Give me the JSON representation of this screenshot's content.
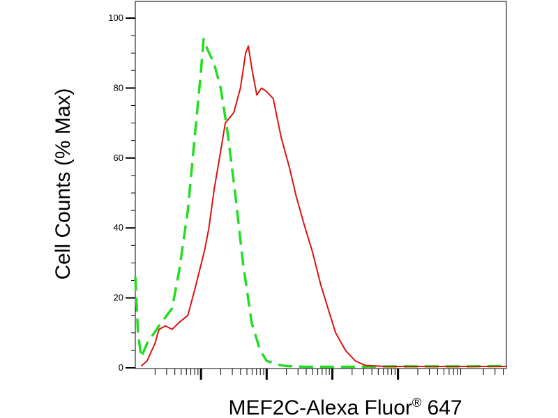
{
  "chart_data": {
    "type": "line",
    "subtype": "flow-cytometry-histogram",
    "title": "",
    "xlabel": "MEF2C-Alexa Fluor",
    "xlabel_superscript": "®",
    "xlabel_suffix": " 647",
    "ylabel": "Cell Counts (% Max)",
    "x_scale": "log",
    "x_range_decades": [
      0,
      5.65
    ],
    "x_major_decades": [
      1,
      2,
      3,
      4
    ],
    "ylim": [
      0,
      100
    ],
    "yticks": [
      0,
      20,
      40,
      60,
      80,
      100
    ],
    "ytick_labels": [
      "0",
      "20",
      "40",
      "60",
      "80",
      "100"
    ],
    "grid": false,
    "legend": "none",
    "series": [
      {
        "color": "#22dd22",
        "style": "dashed",
        "points": [
          [
            0.0,
            26
          ],
          [
            0.04,
            10
          ],
          [
            0.09,
            3
          ],
          [
            0.18,
            7
          ],
          [
            0.36,
            12
          ],
          [
            0.56,
            17
          ],
          [
            0.67,
            28
          ],
          [
            0.8,
            45
          ],
          [
            0.9,
            65
          ],
          [
            1.0,
            85
          ],
          [
            1.04,
            94
          ],
          [
            1.1,
            91
          ],
          [
            1.2,
            87
          ],
          [
            1.3,
            80
          ],
          [
            1.4,
            68
          ],
          [
            1.52,
            50
          ],
          [
            1.64,
            30
          ],
          [
            1.77,
            13
          ],
          [
            1.9,
            5
          ],
          [
            2.0,
            2
          ],
          [
            2.15,
            1
          ],
          [
            2.3,
            0.5
          ],
          [
            2.6,
            0.3
          ],
          [
            3.2,
            0.3
          ],
          [
            4.0,
            0.4
          ],
          [
            5.0,
            0.4
          ],
          [
            5.65,
            0.5
          ]
        ]
      },
      {
        "color": "#dd1111",
        "style": "solid",
        "points": [
          [
            0.09,
            0.5
          ],
          [
            0.18,
            2
          ],
          [
            0.3,
            7
          ],
          [
            0.36,
            11
          ],
          [
            0.46,
            12
          ],
          [
            0.56,
            11
          ],
          [
            0.67,
            13
          ],
          [
            0.8,
            15
          ],
          [
            0.9,
            22
          ],
          [
            0.98,
            28
          ],
          [
            1.06,
            34
          ],
          [
            1.12,
            40
          ],
          [
            1.2,
            51
          ],
          [
            1.3,
            62
          ],
          [
            1.37,
            70
          ],
          [
            1.5,
            73
          ],
          [
            1.6,
            80
          ],
          [
            1.68,
            90
          ],
          [
            1.72,
            92
          ],
          [
            1.78,
            85
          ],
          [
            1.85,
            78
          ],
          [
            1.92,
            80
          ],
          [
            2.0,
            79
          ],
          [
            2.1,
            77
          ],
          [
            2.22,
            66
          ],
          [
            2.35,
            57
          ],
          [
            2.45,
            49
          ],
          [
            2.57,
            41
          ],
          [
            2.7,
            33
          ],
          [
            2.82,
            24
          ],
          [
            2.95,
            16
          ],
          [
            3.05,
            10
          ],
          [
            3.2,
            5
          ],
          [
            3.35,
            2
          ],
          [
            3.5,
            0.7
          ],
          [
            3.8,
            0.4
          ],
          [
            4.5,
            0.4
          ],
          [
            5.2,
            0.4
          ],
          [
            5.65,
            0.4
          ]
        ]
      }
    ]
  }
}
